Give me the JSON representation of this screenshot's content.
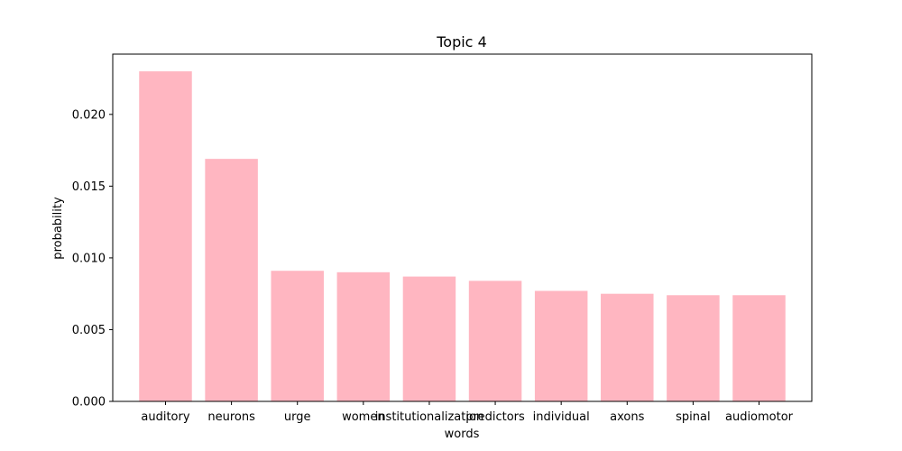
{
  "chart_data": {
    "type": "bar",
    "title": "Topic 4",
    "xlabel": "words",
    "ylabel": "probability",
    "categories": [
      "auditory",
      "neurons",
      "urge",
      "women",
      "institutionalization",
      "predictors",
      "individual",
      "axons",
      "spinal",
      "audiomotor"
    ],
    "values": [
      0.023,
      0.0169,
      0.0091,
      0.009,
      0.0087,
      0.0084,
      0.0077,
      0.0075,
      0.0074,
      0.0074
    ],
    "ylim": [
      0,
      0.0242
    ],
    "yticks": [
      0.0,
      0.005,
      0.01,
      0.015,
      0.02
    ],
    "ytick_labels": [
      "0.000",
      "0.005",
      "0.010",
      "0.015",
      "0.020"
    ],
    "bar_color": "#ffb6c1",
    "grid": false,
    "legend": "none"
  }
}
